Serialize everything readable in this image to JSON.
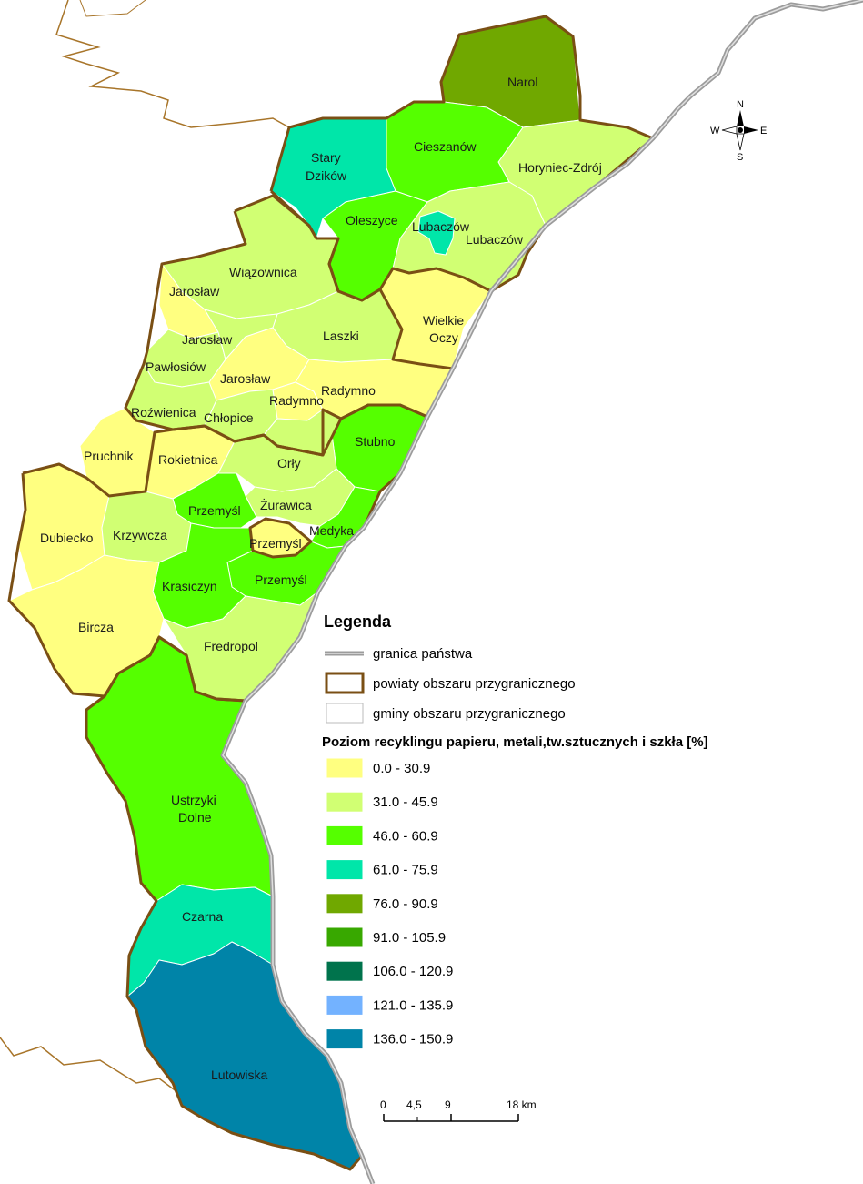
{
  "colors": {
    "c0": "#ffff80",
    "c1": "#d1ff73",
    "c2": "#55ff00",
    "c3": "#00e6a9",
    "c4": "#70a800",
    "c5": "#38a800",
    "c6": "#00734c",
    "c7": "#73b2ff",
    "c8": "#0084a8",
    "powiat_border": "#7a4f14",
    "state_border": "#9c9c9c"
  },
  "legend": {
    "title": "Legenda",
    "border_state": "granica państwa",
    "border_powiat": "powiaty obszaru przygranicznego",
    "border_gmina": "gminy obszaru przygranicznego",
    "subtitle": "Poziom recyklingu papieru, metali,tw.sztucznych i szkła [%]",
    "classes": [
      {
        "label": "0.0 - 30.9",
        "color": "#ffff80"
      },
      {
        "label": "31.0 - 45.9",
        "color": "#d1ff73"
      },
      {
        "label": "46.0 - 60.9",
        "color": "#55ff00"
      },
      {
        "label": "61.0 - 75.9",
        "color": "#00e6a9"
      },
      {
        "label": "76.0 - 90.9",
        "color": "#70a800"
      },
      {
        "label": "91.0 - 105.9",
        "color": "#38a800"
      },
      {
        "label": "106.0 - 120.9",
        "color": "#00734c"
      },
      {
        "label": "121.0 - 135.9",
        "color": "#73b2ff"
      },
      {
        "label": "136.0 - 150.9",
        "color": "#0084a8"
      }
    ]
  },
  "scale": {
    "t0": "0",
    "t1": "4,5",
    "t2": "9",
    "t3": "18 km"
  },
  "compass": {
    "n": "N",
    "s": "S",
    "e": "E",
    "w": "W"
  },
  "regions": {
    "narol": "Narol",
    "cieszanow": "Cieszanów",
    "stary_dzikow_1": "Stary",
    "stary_dzikow_2": "Dzików",
    "horyniec": "Horyniec-Zdrój",
    "oleszyce": "Oleszyce",
    "lubaczow_city": "Lubaczów",
    "lubaczow": "Lubaczów",
    "wiazownica": "Wiązownica",
    "jaroslaw_1": "Jarosław",
    "jaroslaw_2": "Jarosław",
    "jaroslaw_city": "Jarosław",
    "wielkie_oczy_1": "Wielkie",
    "wielkie_oczy_2": "Oczy",
    "laszki": "Laszki",
    "pawlosiow": "Pawłosiów",
    "radymno_city": "Radymno",
    "radymno": "Radymno",
    "rozwienica": "Roźwienica",
    "chlopice": "Chłopice",
    "stubno": "Stubno",
    "pruchnik": "Pruchnik",
    "rokietnica": "Rokietnica",
    "orly": "Orły",
    "zurawica": "Żurawica",
    "przemysl_1": "Przemyśl",
    "przemysl_city": "Przemyśl",
    "przemysl_2": "Przemyśl",
    "medyka": "Medyka",
    "dubiecko": "Dubiecko",
    "krzywcza": "Krzywcza",
    "krasiczyn": "Krasiczyn",
    "bircza": "Bircza",
    "fredropol": "Fredropol",
    "ustrzyki_1": "Ustrzyki",
    "ustrzyki_2": "Dolne",
    "czarna": "Czarna",
    "lutowiska": "Lutowiska"
  }
}
